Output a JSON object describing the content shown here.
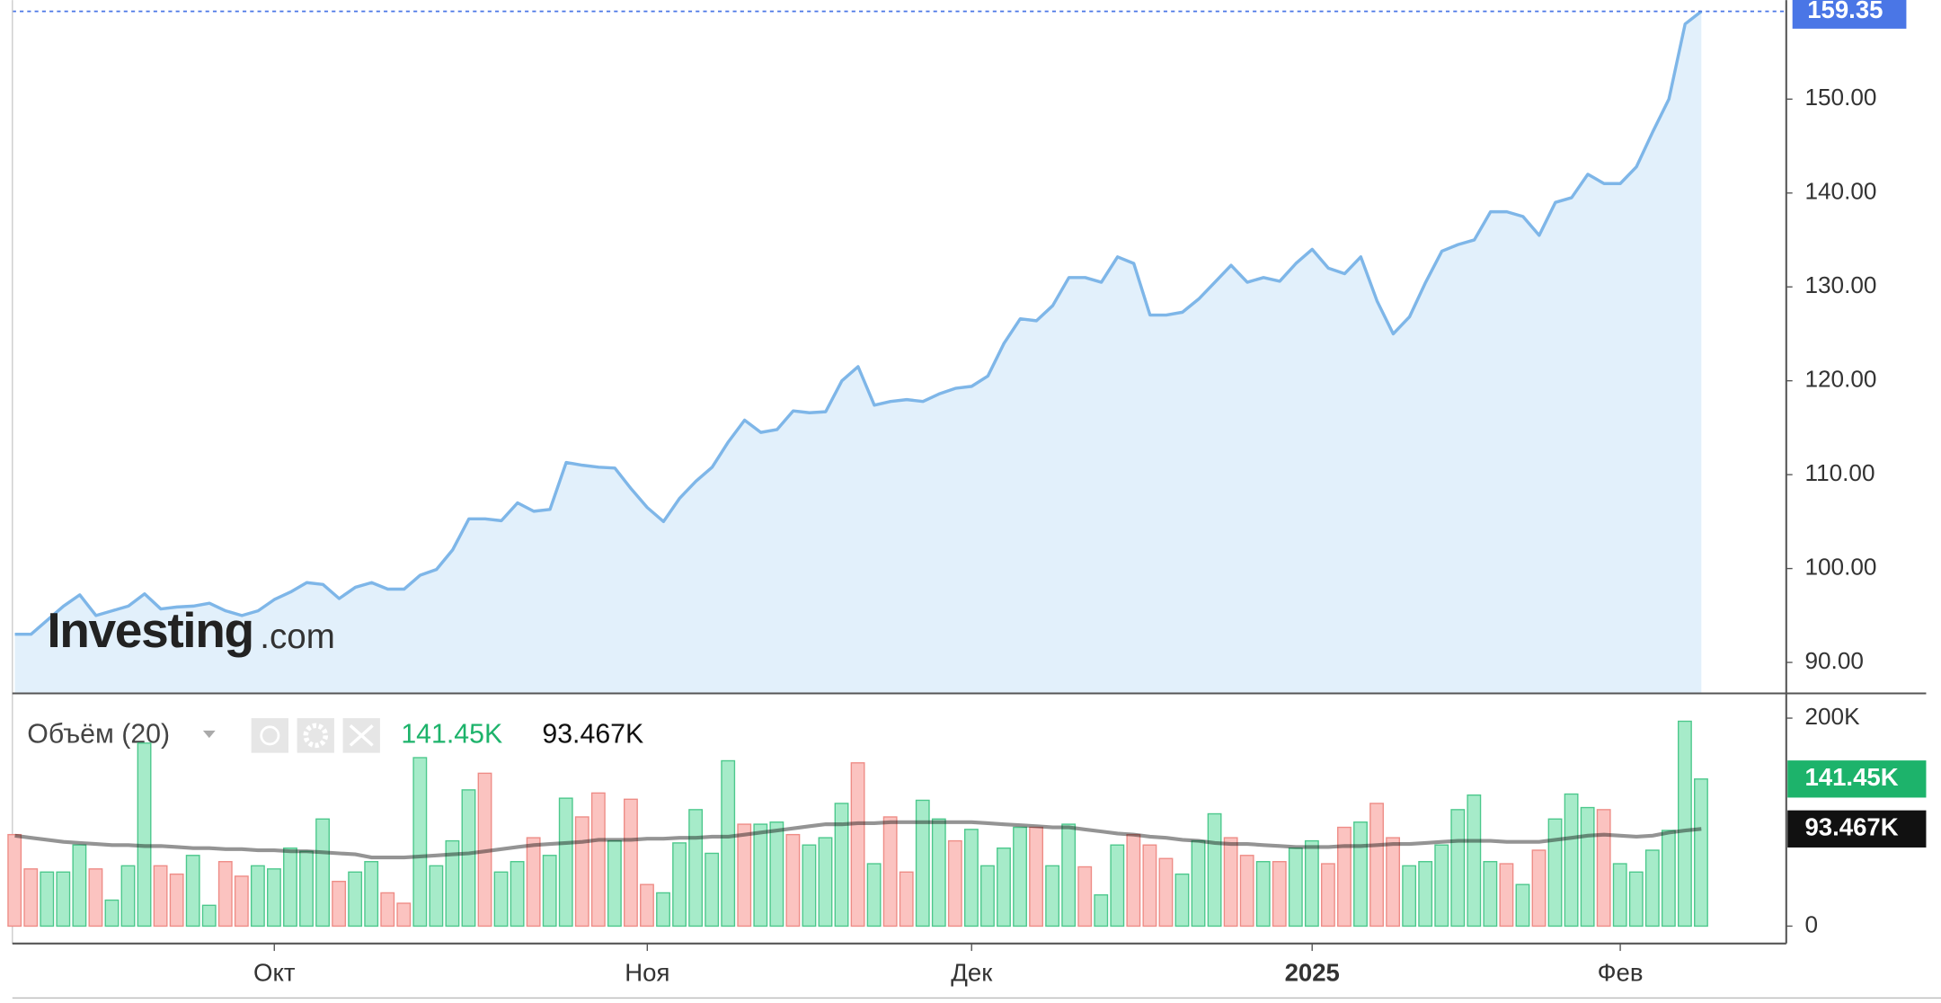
{
  "watermark": [
    "Investing",
    ".com"
  ],
  "chart_data": [
    {
      "type": "area",
      "color": "#7eb6e8",
      "fill": "#e2f0fb",
      "ylim": [
        86.7,
        160.55
      ],
      "yticks": [
        {
          "value": 90,
          "label": "90.00"
        },
        {
          "value": 100,
          "label": "100.00"
        },
        {
          "value": 110,
          "label": "110.00"
        },
        {
          "value": 120,
          "label": "120.00"
        },
        {
          "value": 130,
          "label": "130.00"
        },
        {
          "value": 140,
          "label": "140.00"
        },
        {
          "value": 150,
          "label": "150.00"
        }
      ],
      "values": [
        93.0,
        93.0,
        94.5,
        96.0,
        97.2,
        95.0,
        95.5,
        96.0,
        97.3,
        95.7,
        95.9,
        96.0,
        96.3,
        95.5,
        95.0,
        95.5,
        96.7,
        97.5,
        98.5,
        98.3,
        96.8,
        98.0,
        98.5,
        97.8,
        97.8,
        99.3,
        99.9,
        102.0,
        105.3,
        105.3,
        105.1,
        107.0,
        106.1,
        106.3,
        111.3,
        111.0,
        110.8,
        110.7,
        108.5,
        106.5,
        105.0,
        107.5,
        109.3,
        110.8,
        113.5,
        115.8,
        114.5,
        114.8,
        116.8,
        116.6,
        116.7,
        120.0,
        121.5,
        117.4,
        117.8,
        118.0,
        117.8,
        118.6,
        119.2,
        119.4,
        120.5,
        124.0,
        126.6,
        126.4,
        128.0,
        131.0,
        131.0,
        130.5,
        133.2,
        132.5,
        127.0,
        127.0,
        127.3,
        128.7,
        130.5,
        132.3,
        130.5,
        131.0,
        130.6,
        132.5,
        134.0,
        132.0,
        131.4,
        133.2,
        128.5,
        125.0,
        126.8,
        130.5,
        133.8,
        134.5,
        135.0,
        138.0,
        138.0,
        137.5,
        135.5,
        139.0,
        139.5,
        142.0,
        141.0,
        141.0,
        142.8,
        146.5,
        150.0,
        158.0,
        159.35
      ],
      "last_color": "#4a76e6"
    },
    {
      "type": "bar",
      "title": "Объём (20)",
      "categories": [
        null,
        null,
        null,
        null,
        null,
        null,
        null,
        null,
        null,
        null,
        null,
        null,
        null,
        null,
        null,
        null,
        "Окт",
        null,
        null,
        null,
        null,
        null,
        null,
        null,
        null,
        null,
        null,
        null,
        null,
        null,
        null,
        null,
        null,
        null,
        null,
        null,
        null,
        null,
        null,
        "Ноя",
        null,
        null,
        null,
        null,
        null,
        null,
        null,
        null,
        null,
        null,
        null,
        null,
        null,
        null,
        null,
        null,
        null,
        null,
        null,
        "Дек",
        null,
        null,
        null,
        null,
        null,
        null,
        null,
        null,
        null,
        null,
        null,
        null,
        null,
        null,
        null,
        null,
        null,
        null,
        null,
        null,
        "2025",
        null,
        null,
        null,
        null,
        null,
        null,
        null,
        null,
        null,
        null,
        null,
        null,
        null,
        null,
        null,
        null,
        null,
        null,
        "Фев",
        null,
        null,
        null,
        null,
        null
      ],
      "ylim": [
        -16700,
        221400
      ],
      "yticks": [
        0,
        {
          "value": 200000,
          "label": "200K"
        }
      ],
      "series": [
        {
          "color": "#1db36b",
          "values": [
            88000,
            55000,
            52000,
            52000,
            78000,
            55000,
            25000,
            58000,
            176000,
            58000,
            50000,
            68000,
            20000,
            62000,
            48000,
            58000,
            55000,
            75000,
            72000,
            103000,
            43000,
            52000,
            62000,
            32000,
            22000,
            162000,
            58000,
            82000,
            131000,
            147000,
            52000,
            62000,
            85000,
            68000,
            123000,
            105000,
            128000,
            82000,
            122000,
            40000,
            32000,
            80000,
            112000,
            70000,
            159000,
            98000,
            98000,
            100000,
            88000,
            78000,
            85000,
            118000,
            157000,
            60000,
            105000,
            52000,
            121000,
            103000,
            82000,
            93000,
            58000,
            75000,
            95000,
            95000,
            58000,
            98000,
            57000,
            30000,
            78000,
            88000,
            78000,
            65000,
            50000,
            82000,
            108000,
            85000,
            68000,
            62000,
            62000,
            75000,
            82000,
            60000,
            95000,
            100000,
            118000,
            85000,
            58000,
            62000,
            78000,
            112000,
            126000,
            62000,
            60000,
            40000,
            73000,
            103000,
            127000,
            114000,
            112000,
            60000,
            52000,
            73000,
            92000,
            197000,
            141450
          ],
          "value_labels": [
            null,
            null,
            null,
            null,
            null,
            null,
            null,
            null,
            null,
            null,
            null,
            null,
            null,
            null,
            null,
            null,
            null,
            null,
            null,
            null,
            null,
            null,
            null,
            null,
            null,
            null,
            null,
            null,
            null,
            null,
            null,
            null,
            null,
            null,
            null,
            null,
            null,
            null,
            null,
            null,
            null,
            null,
            null,
            null,
            null,
            null,
            null,
            null,
            null,
            null,
            null,
            null,
            null,
            null,
            null,
            null,
            null,
            null,
            null,
            null,
            null,
            null,
            null,
            null,
            null,
            null,
            null,
            null,
            null,
            null,
            null,
            null,
            null,
            null,
            null,
            null,
            null,
            null,
            null,
            null,
            null,
            null,
            null,
            null,
            null,
            null,
            null,
            null,
            null,
            null,
            null,
            null,
            null,
            null,
            null,
            null,
            null,
            null,
            null,
            null,
            null,
            null,
            null,
            null,
            "141.45K"
          ],
          "colors": [
            "#fbc3c0",
            "#fbc3c0",
            "#a6ebc9",
            "#a6ebc9",
            "#a6ebc9",
            "#fbc3c0",
            "#a6ebc9",
            "#a6ebc9",
            "#a6ebc9",
            "#fbc3c0",
            "#fbc3c0",
            "#a6ebc9",
            "#a6ebc9",
            "#fbc3c0",
            "#fbc3c0",
            "#a6ebc9",
            "#a6ebc9",
            "#a6ebc9",
            "#a6ebc9",
            "#a6ebc9",
            "#fbc3c0",
            "#a6ebc9",
            "#a6ebc9",
            "#fbc3c0",
            "#fbc3c0",
            "#a6ebc9",
            "#a6ebc9",
            "#a6ebc9",
            "#a6ebc9",
            "#fbc3c0",
            "#a6ebc9",
            "#a6ebc9",
            "#fbc3c0",
            "#a6ebc9",
            "#a6ebc9",
            "#fbc3c0",
            "#fbc3c0",
            "#a6ebc9",
            "#fbc3c0",
            "#fbc3c0",
            "#a6ebc9",
            "#a6ebc9",
            "#a6ebc9",
            "#a6ebc9",
            "#a6ebc9",
            "#fbc3c0",
            "#a6ebc9",
            "#a6ebc9",
            "#fbc3c0",
            "#a6ebc9",
            "#a6ebc9",
            "#a6ebc9",
            "#fbc3c0",
            "#a6ebc9",
            "#fbc3c0",
            "#fbc3c0",
            "#a6ebc9",
            "#a6ebc9",
            "#fbc3c0",
            "#a6ebc9",
            "#a6ebc9",
            "#a6ebc9",
            "#a6ebc9",
            "#fbc3c0",
            "#a6ebc9",
            "#a6ebc9",
            "#fbc3c0",
            "#a6ebc9",
            "#a6ebc9",
            "#fbc3c0",
            "#fbc3c0",
            "#fbc3c0",
            "#a6ebc9",
            "#a6ebc9",
            "#a6ebc9",
            "#fbc3c0",
            "#fbc3c0",
            "#a6ebc9",
            "#fbc3c0",
            "#a6ebc9",
            "#a6ebc9",
            "#fbc3c0",
            "#fbc3c0",
            "#a6ebc9",
            "#fbc3c0",
            "#fbc3c0",
            "#a6ebc9",
            "#a6ebc9",
            "#a6ebc9",
            "#a6ebc9",
            "#a6ebc9",
            "#a6ebc9",
            "#fbc3c0",
            "#a6ebc9",
            "#fbc3c0",
            "#a6ebc9",
            "#a6ebc9",
            "#a6ebc9",
            "#fbc3c0",
            "#a6ebc9",
            "#a6ebc9",
            "#a6ebc9",
            "#a6ebc9",
            "#a6ebc9",
            "#a6ebc9"
          ]
        },
        {
          "type": "line",
          "color": "#111111",
          "values": [
            87000,
            85000,
            83000,
            81000,
            80000,
            79000,
            78000,
            78000,
            77000,
            77000,
            76000,
            75000,
            75000,
            74000,
            74000,
            73000,
            73000,
            72000,
            72000,
            71000,
            70000,
            69000,
            66000,
            66000,
            66000,
            67000,
            68000,
            69000,
            70000,
            72000,
            74000,
            76000,
            78000,
            79000,
            80000,
            81000,
            83000,
            83000,
            83000,
            84000,
            84000,
            85000,
            85000,
            86000,
            86000,
            88000,
            90000,
            92000,
            94000,
            96000,
            98000,
            98000,
            99000,
            99000,
            100000,
            100000,
            100000,
            100000,
            100000,
            100000,
            99000,
            98000,
            97000,
            96000,
            95000,
            95000,
            93000,
            91000,
            89000,
            88000,
            86000,
            85000,
            83000,
            82000,
            80000,
            79000,
            79000,
            78000,
            77000,
            76000,
            76000,
            76000,
            77000,
            77000,
            78000,
            79000,
            79000,
            80000,
            81000,
            82000,
            82000,
            82000,
            81000,
            81000,
            81000,
            83000,
            85000,
            87000,
            88000,
            87000,
            86000,
            87000,
            90000,
            92000,
            93467
          ],
          "value_labels": [
            null,
            null,
            null,
            null,
            null,
            null,
            null,
            null,
            null,
            null,
            null,
            null,
            null,
            null,
            null,
            null,
            null,
            null,
            null,
            null,
            null,
            null,
            null,
            null,
            null,
            null,
            null,
            null,
            null,
            null,
            null,
            null,
            null,
            null,
            null,
            null,
            null,
            null,
            null,
            null,
            null,
            null,
            null,
            null,
            null,
            null,
            null,
            null,
            null,
            null,
            null,
            null,
            null,
            null,
            null,
            null,
            null,
            null,
            null,
            null,
            null,
            null,
            null,
            null,
            null,
            null,
            null,
            null,
            null,
            null,
            null,
            null,
            null,
            null,
            null,
            null,
            null,
            null,
            null,
            null,
            null,
            null,
            null,
            null,
            null,
            null,
            null,
            null,
            null,
            null,
            null,
            null,
            null,
            null,
            null,
            null,
            null,
            null,
            null,
            null,
            null,
            null,
            null,
            null,
            "93.467K"
          ]
        }
      ]
    }
  ]
}
